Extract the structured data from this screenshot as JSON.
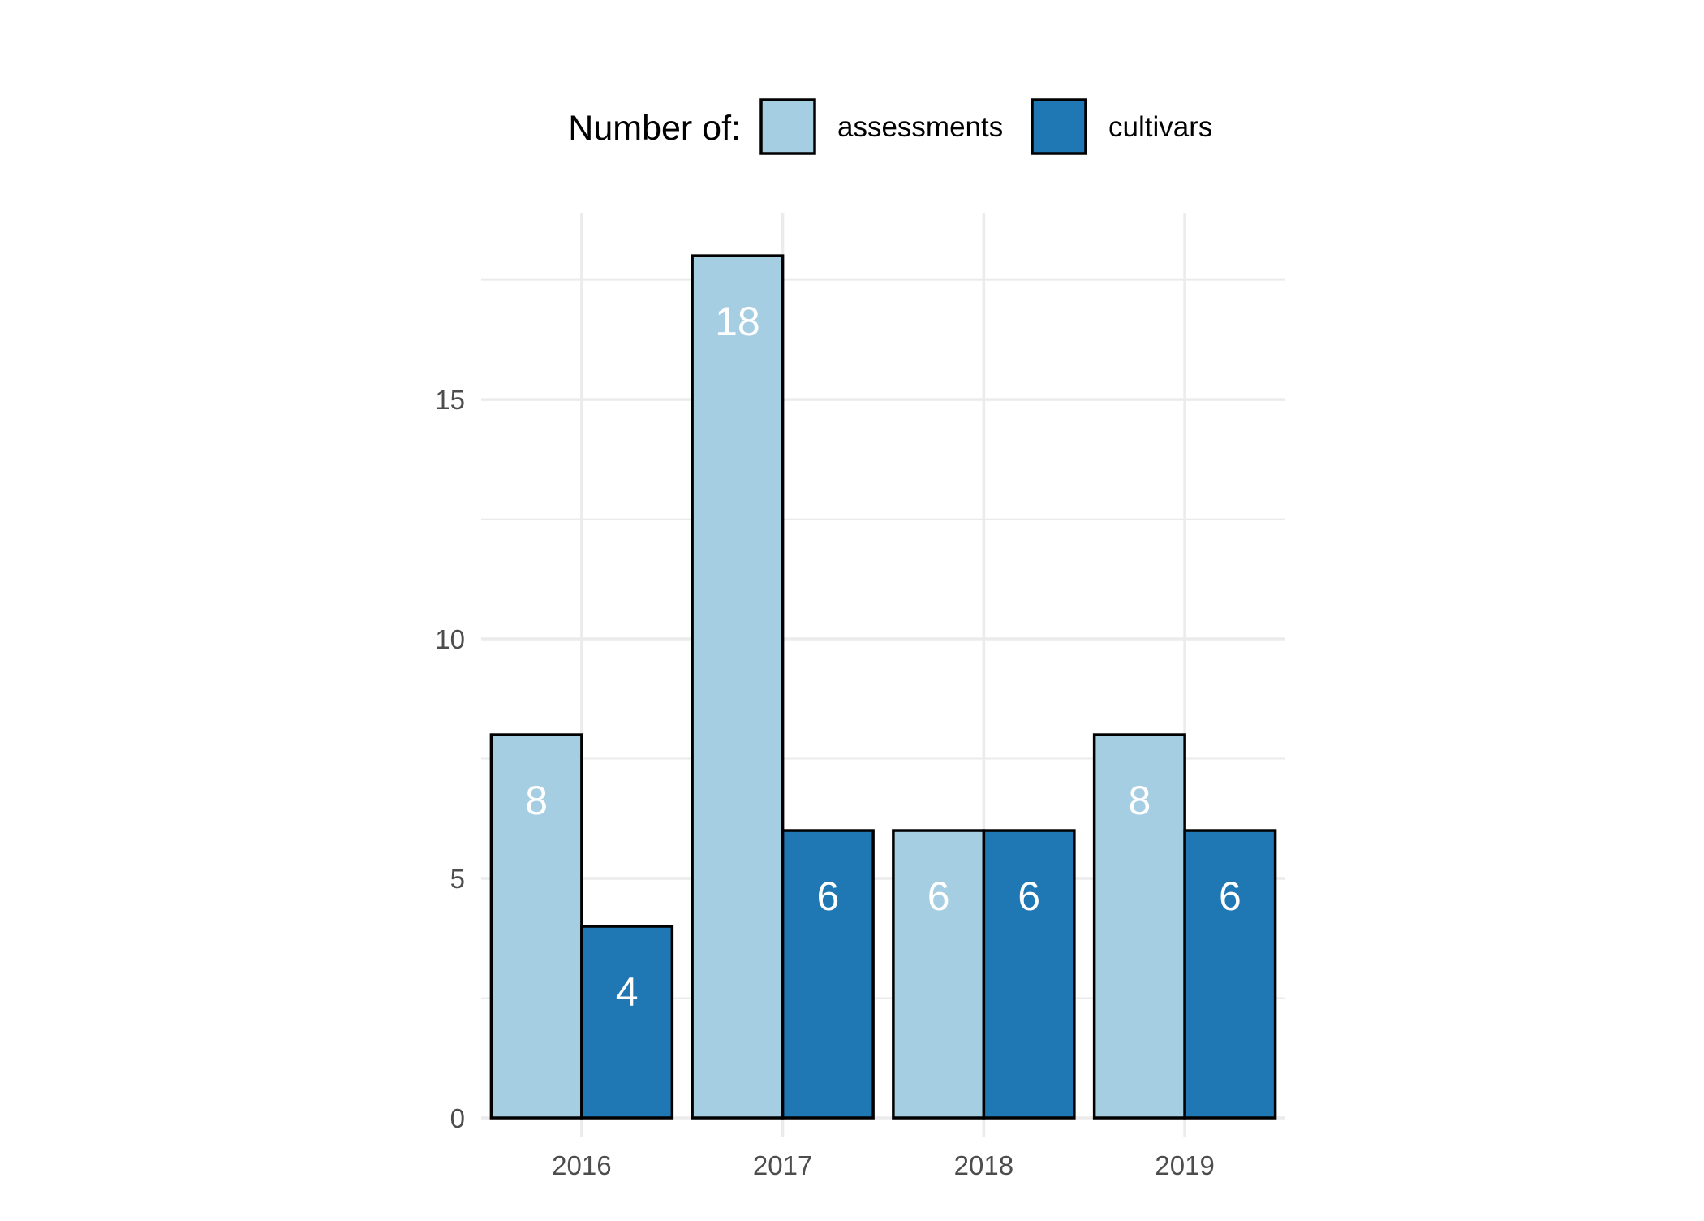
{
  "chart_data": {
    "type": "bar",
    "title": "",
    "xlabel": "",
    "ylabel": "",
    "categories": [
      "2016",
      "2017",
      "2018",
      "2019"
    ],
    "series": [
      {
        "name": "assessments",
        "values": [
          8,
          18,
          6,
          8
        ],
        "color": "#A6CEE3"
      },
      {
        "name": "cultivars",
        "values": [
          4,
          6,
          6,
          6
        ],
        "color": "#1F78B4"
      }
    ],
    "ylim": [
      0,
      18.9
    ],
    "yticks": [
      0,
      5,
      10,
      15
    ],
    "grid": true,
    "legend": {
      "title": "Number of:",
      "position": "top"
    }
  },
  "colors": {
    "grid": "#EBEBEB",
    "bar_outline": "#000000",
    "data_label": "#FFFFFF",
    "tick_label": "#4D4D4D"
  }
}
